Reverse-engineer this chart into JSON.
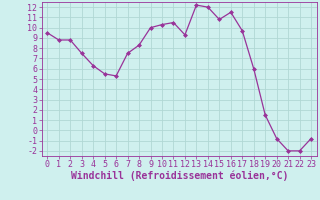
{
  "x": [
    0,
    1,
    2,
    3,
    4,
    5,
    6,
    7,
    8,
    9,
    10,
    11,
    12,
    13,
    14,
    15,
    16,
    17,
    18,
    19,
    20,
    21,
    22,
    23
  ],
  "y": [
    9.5,
    8.8,
    8.8,
    7.5,
    6.3,
    5.5,
    5.3,
    7.5,
    8.3,
    10.0,
    10.3,
    10.5,
    9.3,
    12.2,
    12.0,
    10.8,
    11.5,
    9.7,
    6.0,
    1.5,
    -0.8,
    -2.0,
    -2.0,
    -0.8
  ],
  "line_color": "#993399",
  "marker": "D",
  "marker_size": 2.0,
  "linewidth": 0.9,
  "xlabel": "Windchill (Refroidissement éolien,°C)",
  "xlim": [
    -0.5,
    23.5
  ],
  "ylim": [
    -2.5,
    12.5
  ],
  "yticks": [
    -2,
    -1,
    0,
    1,
    2,
    3,
    4,
    5,
    6,
    7,
    8,
    9,
    10,
    11,
    12
  ],
  "xticks": [
    0,
    1,
    2,
    3,
    4,
    5,
    6,
    7,
    8,
    9,
    10,
    11,
    12,
    13,
    14,
    15,
    16,
    17,
    18,
    19,
    20,
    21,
    22,
    23
  ],
  "bg_color": "#cff0ee",
  "grid_color": "#b0d8d4",
  "tick_color": "#993399",
  "label_color": "#993399",
  "xlabel_fontsize": 7.0,
  "tick_fontsize": 6.0
}
